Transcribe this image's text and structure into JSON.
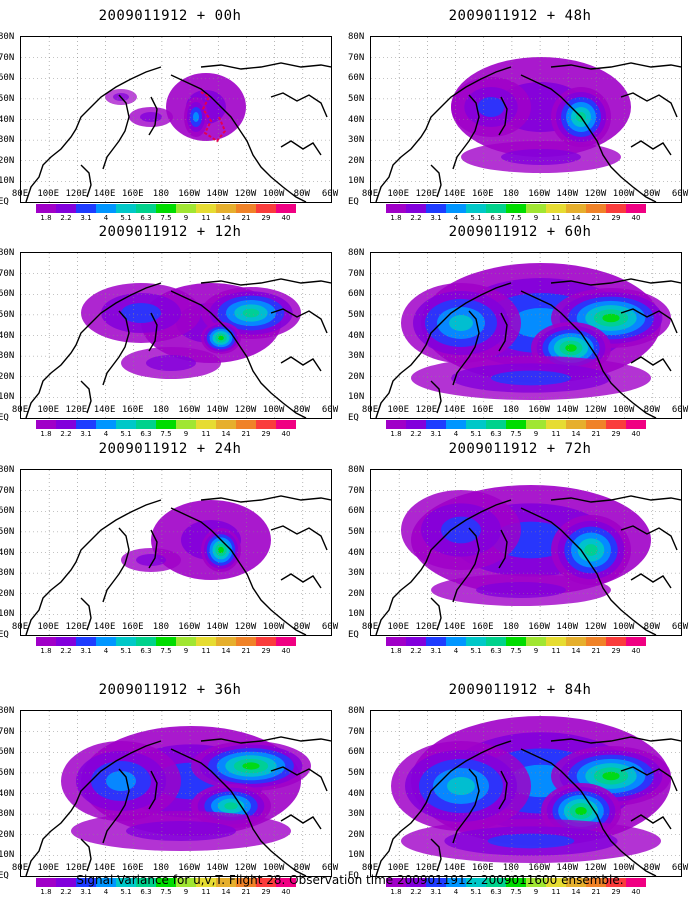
{
  "panels": [
    {
      "title": "2009011912 + 00h",
      "level": 0
    },
    {
      "title": "2009011912 + 48h",
      "level": 4
    },
    {
      "title": "2009011912 + 12h",
      "level": 1
    },
    {
      "title": "2009011912 + 60h",
      "level": 5
    },
    {
      "title": "2009011912 + 24h",
      "level": 2
    },
    {
      "title": "2009011912 + 72h",
      "level": 6
    },
    {
      "title": "2009011912 + 36h",
      "level": 3
    },
    {
      "title": "2009011912 + 84h",
      "level": 7
    }
  ],
  "lat_labels": [
    "80N",
    "70N",
    "60N",
    "50N",
    "40N",
    "30N",
    "20N",
    "10N",
    "EQ"
  ],
  "lon_labels": [
    "80E",
    "100E",
    "120E",
    "140E",
    "160E",
    "180",
    "160W",
    "140W",
    "120W",
    "100W",
    "80W",
    "60W"
  ],
  "colorbar": {
    "colors": [
      "#a000c8",
      "#8200dc",
      "#1e3cff",
      "#0096ff",
      "#00c8c8",
      "#00d28c",
      "#00dc00",
      "#a0e632",
      "#e6dc32",
      "#e6af2d",
      "#f08228",
      "#fa3c3c",
      "#f00082"
    ],
    "ticks": [
      "1.8",
      "2.2",
      "3.1",
      "4",
      "5.1",
      "6.3",
      "7.5",
      "9",
      "11",
      "14",
      "21",
      "29",
      "40"
    ]
  },
  "caption": "Signal Variance for u,v,T. Flight 28. Observation time 2009011912. 2009011600 ensemble."
}
